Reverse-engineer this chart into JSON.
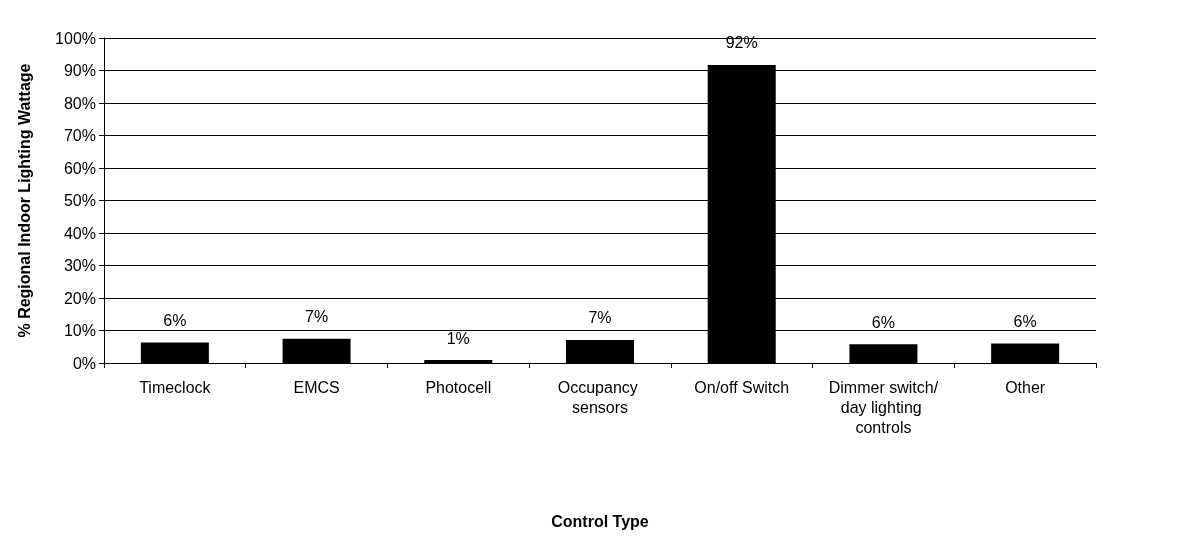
{
  "chart_data": {
    "type": "bar",
    "xlabel": "Control Type",
    "ylabel": "% Regional Indoor Lighting Wattage",
    "categories": [
      "Timeclock",
      "EMCS",
      "Photocell",
      "Occupancy sensors",
      "On/off Switch",
      "Dimmer switch/day lighting controls",
      "Other"
    ],
    "values": [
      6.3,
      7.5,
      0.9,
      7.1,
      91.7,
      5.8,
      6.0
    ],
    "value_labels": [
      "6%",
      "7%",
      "1%",
      "7%",
      "92%",
      "6%",
      "6%"
    ],
    "color": "#000000",
    "ylim": [
      0,
      100
    ],
    "yticks": [
      {
        "value": 0,
        "label": "0%"
      },
      {
        "value": 10,
        "label": "10%"
      },
      {
        "value": 20,
        "label": "20%"
      },
      {
        "value": 30,
        "label": "30%"
      },
      {
        "value": 40,
        "label": "40%"
      },
      {
        "value": 50,
        "label": "50%"
      },
      {
        "value": 60,
        "label": "60%"
      },
      {
        "value": 70,
        "label": "70%"
      },
      {
        "value": 80,
        "label": "80%"
      },
      {
        "value": 90,
        "label": "90%"
      },
      {
        "value": 100,
        "label": "100%"
      }
    ],
    "grid": "y"
  }
}
